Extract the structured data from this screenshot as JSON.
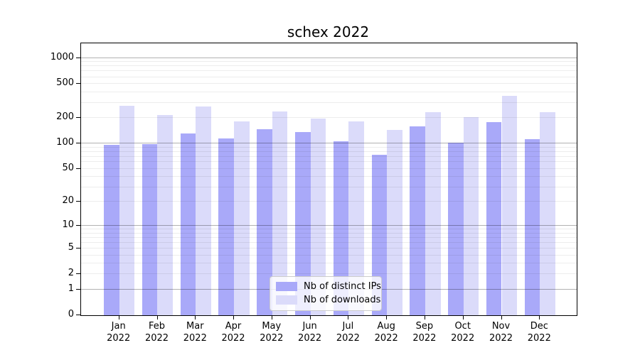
{
  "chart_data": {
    "type": "bar",
    "title": "schex 2022",
    "year_label": "2022",
    "categories": [
      "Jan",
      "Feb",
      "Mar",
      "Apr",
      "May",
      "Jun",
      "Jul",
      "Aug",
      "Sep",
      "Oct",
      "Nov",
      "Dec"
    ],
    "series": [
      {
        "name": "Nb of distinct IPs",
        "color": "#a9a9f9",
        "values": [
          97,
          98,
          130,
          115,
          147,
          136,
          107,
          74,
          160,
          102,
          178,
          112
        ]
      },
      {
        "name": "Nb of downloads",
        "color": "#dbdbfa",
        "values": [
          275,
          216,
          270,
          181,
          239,
          197,
          181,
          145,
          231,
          202,
          365,
          234
        ]
      }
    ],
    "y_ticks": [
      0,
      1,
      2,
      5,
      10,
      20,
      50,
      100,
      200,
      500,
      1000
    ],
    "y_scale": "log10(1+x)",
    "ylim": [
      0,
      1485
    ],
    "decade_gridlines": [
      1,
      10,
      100,
      1000
    ],
    "grid": "horizontal-only",
    "legend_position": "bottom-center",
    "xlabel": "",
    "ylabel": ""
  }
}
